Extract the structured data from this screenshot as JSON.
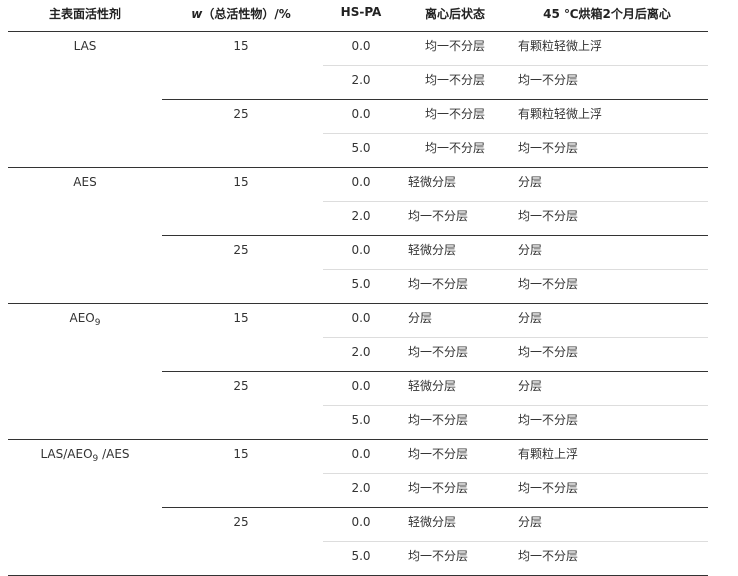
{
  "header": {
    "col1": "主表面活性剂",
    "col2_var": "w",
    "col2_rest": "（总活性物）/%",
    "col3": "HS-PA",
    "col4": "离心后状态",
    "col5": "45 ℃烘箱2个月后离心"
  },
  "groups": [
    {
      "surfactant": "LAS",
      "sub": [
        {
          "w": "15",
          "rows": [
            {
              "hspa": "0.0",
              "state": "均一不分层",
              "after": "有颗粒轻微上浮"
            },
            {
              "hspa": "2.0",
              "state": "均一不分层",
              "after": "均一不分层"
            }
          ]
        },
        {
          "w": "25",
          "rows": [
            {
              "hspa": "0.0",
              "state": "均一不分层",
              "after": "有颗粒轻微上浮"
            },
            {
              "hspa": "5.0",
              "state": "均一不分层",
              "after": "均一不分层"
            }
          ]
        }
      ]
    },
    {
      "surfactant": "AES",
      "sub": [
        {
          "w": "15",
          "rows": [
            {
              "hspa": "0.0",
              "state": "轻微分层",
              "after": "分层"
            },
            {
              "hspa": "2.0",
              "state": "均一不分层",
              "after": "均一不分层"
            }
          ]
        },
        {
          "w": "25",
          "rows": [
            {
              "hspa": "0.0",
              "state": "轻微分层",
              "after": "分层"
            },
            {
              "hspa": "5.0",
              "state": "均一不分层",
              "after": "均一不分层"
            }
          ]
        }
      ]
    },
    {
      "surfactant": "AEO9",
      "surfactant_parts": [
        "AEO",
        "9",
        ""
      ],
      "sub": [
        {
          "w": "15",
          "rows": [
            {
              "hspa": "0.0",
              "state": "分层",
              "after": "分层"
            },
            {
              "hspa": "2.0",
              "state": "均一不分层",
              "after": "均一不分层"
            }
          ]
        },
        {
          "w": "25",
          "rows": [
            {
              "hspa": "0.0",
              "state": "轻微分层",
              "after": "分层"
            },
            {
              "hspa": "5.0",
              "state": "均一不分层",
              "after": "均一不分层"
            }
          ]
        }
      ]
    },
    {
      "surfactant": "LAS/AEO9 /AES",
      "surfactant_parts": [
        "LAS/AEO",
        "9",
        " /AES"
      ],
      "sub": [
        {
          "w": "15",
          "rows": [
            {
              "hspa": "0.0",
              "state": "均一不分层",
              "after": "有颗粒上浮"
            },
            {
              "hspa": "2.0",
              "state": "均一不分层",
              "after": "均一不分层"
            }
          ]
        },
        {
          "w": "25",
          "rows": [
            {
              "hspa": "0.0",
              "state": "轻微分层",
              "after": "分层"
            },
            {
              "hspa": "5.0",
              "state": "均一不分层",
              "after": "均一不分层"
            }
          ]
        }
      ]
    }
  ]
}
